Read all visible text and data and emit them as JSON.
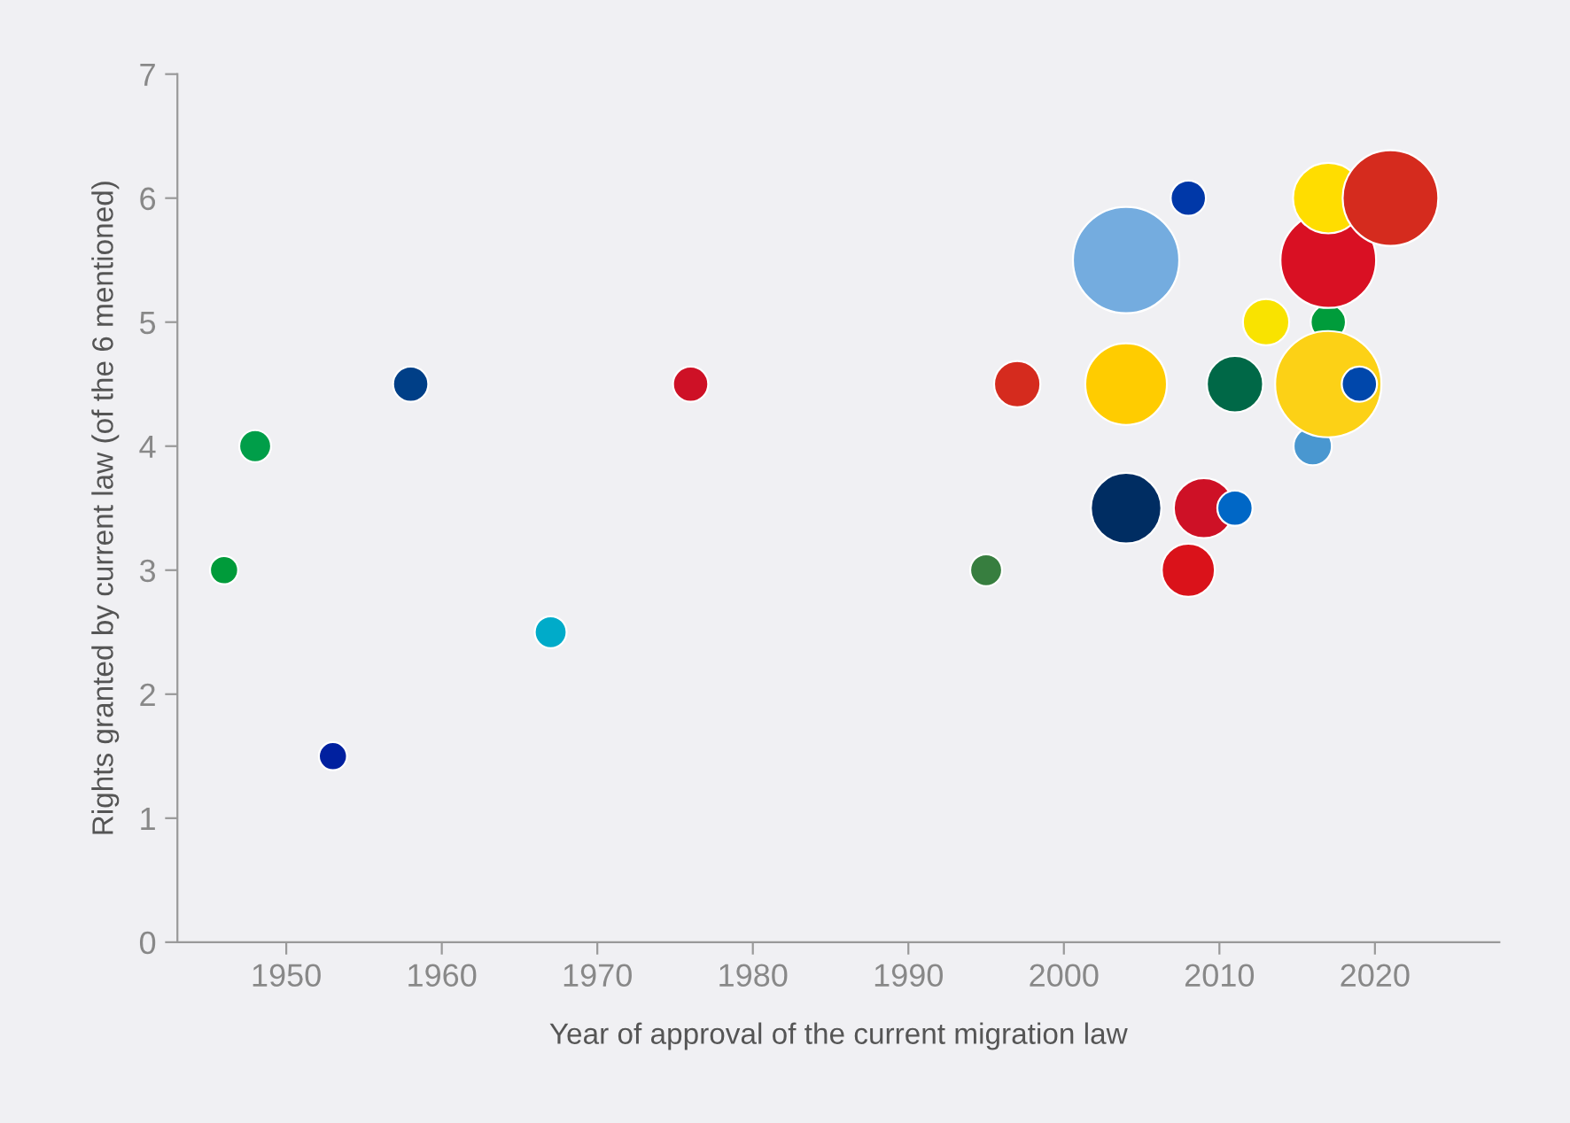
{
  "chart_data": {
    "type": "bubble",
    "xlabel": "Year of approval of the current migration law",
    "ylabel": "Rights granted by current law (of the 6 mentioned)",
    "xlim": [
      1943,
      2028
    ],
    "xticks": [
      1950,
      1960,
      1970,
      1980,
      1990,
      2000,
      2010,
      2020
    ],
    "ylim": [
      0,
      7
    ],
    "yticks": [
      0,
      1,
      2,
      3,
      4,
      5,
      6,
      7
    ],
    "grid": false,
    "series": [
      {
        "x": [
          1946,
          1948,
          1953,
          1958,
          1967,
          1976,
          1995,
          1997,
          2004,
          2008,
          2004,
          2004,
          2009,
          2011,
          2008,
          2011,
          2013,
          2016,
          2017,
          2017,
          2019,
          2017,
          2017,
          2021
        ],
        "values": [
          3,
          4,
          1.5,
          4.5,
          2.5,
          4.5,
          3,
          4.5,
          5.5,
          6,
          4.5,
          3.5,
          3.5,
          3.5,
          3,
          4.5,
          5,
          4,
          5,
          4.5,
          4.5,
          5.5,
          6,
          6
        ],
        "sizes": [
          0.07,
          0.09,
          0.07,
          0.11,
          0.09,
          0.11,
          0.09,
          0.19,
          1,
          0.11,
          0.59,
          0.44,
          0.32,
          0.11,
          0.25,
          0.28,
          0.19,
          0.13,
          0.11,
          1,
          0.11,
          0.81,
          0.44,
          0.81
        ],
        "colors": [
          "#009b3a",
          "#009e49",
          "#00209f",
          "#003f87",
          "#00abc9",
          "#ce1126",
          "#377e3f",
          "#d52b1e",
          "#74acdf",
          "#0038a8",
          "#ffcc00",
          "#002d62",
          "#ce1126",
          "#0067c6",
          "#da121a",
          "#006847",
          "#f9e300",
          "#4997d0",
          "#009c3b",
          "#fcd116",
          "#0047ab",
          "#d91023",
          "#ffdd00",
          "#d52b1e"
        ]
      }
    ]
  }
}
